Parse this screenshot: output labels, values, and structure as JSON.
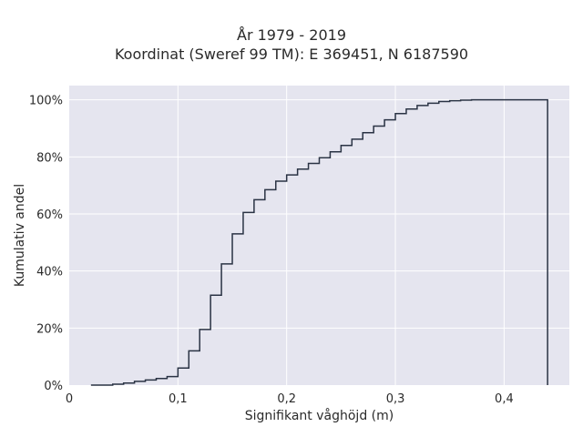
{
  "chart_data": {
    "type": "line",
    "subtype": "cumulative-step",
    "title_line1": "År 1979 - 2019",
    "title_line2": "Koordinat (Sweref 99 TM): E 369451, N 6187590",
    "xlabel": "Signifikant våghöjd (m)",
    "ylabel": "Kumulativ andel",
    "xlim": [
      0,
      0.46
    ],
    "ylim": [
      0,
      1.05
    ],
    "x_ticks": [
      0,
      0.1,
      0.2,
      0.3,
      0.4
    ],
    "x_tick_labels": [
      "0",
      "0,1",
      "0,2",
      "0,3",
      "0,4"
    ],
    "y_ticks": [
      0,
      0.2,
      0.4,
      0.6,
      0.8,
      1.0
    ],
    "y_tick_labels": [
      "0%",
      "20%",
      "40%",
      "60%",
      "80%",
      "100%"
    ],
    "grid": true,
    "background": "#e5e5ef",
    "line_color": "#2a3344",
    "series": [
      {
        "x": [
          0.02,
          0.03,
          0.04,
          0.05,
          0.06,
          0.07,
          0.08,
          0.09,
          0.1,
          0.11,
          0.12,
          0.13,
          0.14,
          0.15,
          0.16,
          0.17,
          0.18,
          0.19,
          0.2,
          0.21,
          0.22,
          0.23,
          0.24,
          0.25,
          0.26,
          0.27,
          0.28,
          0.29,
          0.3,
          0.31,
          0.32,
          0.33,
          0.34,
          0.35,
          0.36,
          0.37,
          0.38,
          0.39,
          0.4,
          0.41,
          0.42,
          0.43,
          0.44
        ],
        "y": [
          0.0,
          0.0,
          0.003,
          0.007,
          0.013,
          0.018,
          0.023,
          0.03,
          0.06,
          0.12,
          0.195,
          0.315,
          0.425,
          0.53,
          0.605,
          0.65,
          0.685,
          0.715,
          0.737,
          0.757,
          0.777,
          0.797,
          0.818,
          0.84,
          0.862,
          0.885,
          0.908,
          0.93,
          0.952,
          0.968,
          0.98,
          0.988,
          0.994,
          0.997,
          0.999,
          1.0,
          1.0,
          1.0,
          1.0,
          1.0,
          1.0,
          1.0,
          1.0
        ]
      }
    ]
  }
}
